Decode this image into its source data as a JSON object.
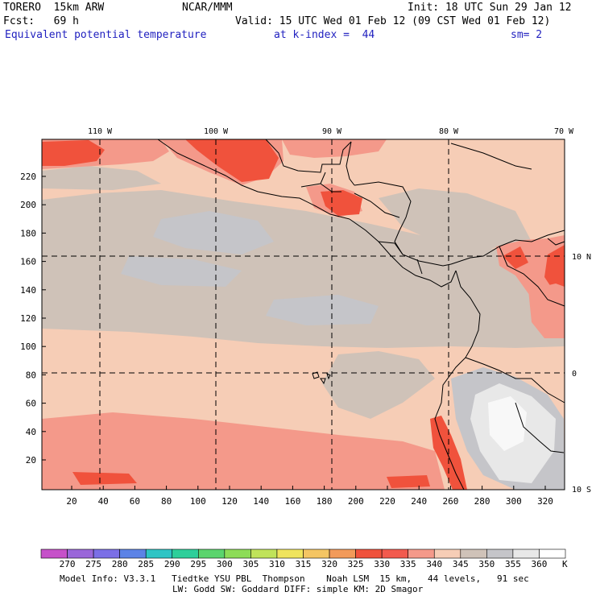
{
  "header": {
    "model": "TORERO  15km ARW",
    "center": "NCAR/MMM",
    "init": "Init: 18 UTC Sun 29 Jan 12",
    "fcst": "Fcst:   69 h",
    "valid": "Valid: 15 UTC Wed 01 Feb 12 (09 CST Wed 01 Feb 12)",
    "field": "Equivalent potential temperature",
    "level": "at k-index =  44",
    "smooth": "sm= 2"
  },
  "axes": {
    "top_lon_labels": [
      "110 W",
      "100 W",
      "90 W",
      "80 W",
      "70 W"
    ],
    "right_lat_labels": [
      "10 N",
      "0",
      "10 S"
    ],
    "left_y_ticks": [
      "20",
      "40",
      "60",
      "80",
      "100",
      "120",
      "140",
      "160",
      "180",
      "200",
      "220"
    ],
    "bottom_x_ticks": [
      "20",
      "40",
      "60",
      "80",
      "100",
      "120",
      "140",
      "160",
      "180",
      "200",
      "220",
      "240",
      "260",
      "280",
      "300",
      "320"
    ]
  },
  "colorbar": {
    "labels": [
      "270",
      "275",
      "280",
      "285",
      "290",
      "295",
      "300",
      "305",
      "310",
      "315",
      "320",
      "325",
      "330",
      "335",
      "340",
      "345",
      "350",
      "355",
      "360"
    ],
    "unit": "K",
    "colors": [
      "#c651c9",
      "#9a67d9",
      "#7b6fe6",
      "#5c83e6",
      "#2ec4c4",
      "#2ecf9a",
      "#5bd46d",
      "#8ddc57",
      "#c0e35a",
      "#f0e45d",
      "#f4c563",
      "#f29a5a",
      "#f0523c",
      "#f25a4e",
      "#f4998a",
      "#f6cdb6",
      "#cfc2b8",
      "#c5c5c9",
      "#e8e8e8",
      "#ffffff"
    ]
  },
  "footer": {
    "line1": "Model Info: V3.3.1   Tiedtke YSU PBL  Thompson    Noah LSM  15 km,   44 levels,   91 sec",
    "line2": "LW: Godd SW: Goddard DIFF: simple KM: 2D Smagor"
  },
  "palette": {
    "peach": "#f6cdb6",
    "salmon": "#f4998a",
    "red": "#f0523c",
    "taupe": "#cfc2b8",
    "gray": "#c5c5c9",
    "light": "#e8e8e8",
    "white": "#f8f8f8"
  }
}
